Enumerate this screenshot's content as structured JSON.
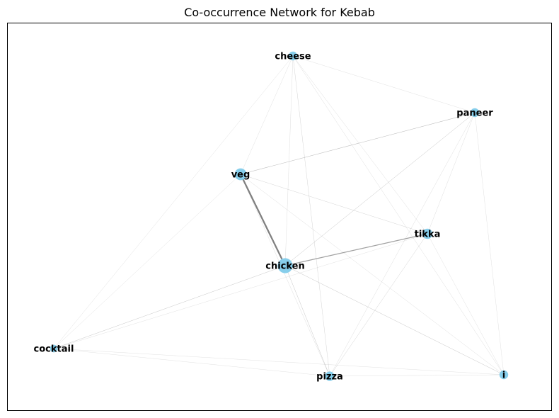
{
  "title": "Co-occurrence Network for Kebab",
  "colors": {
    "node": "#87ceeb",
    "edge": "#808080",
    "frame": "#000000",
    "text": "#000000"
  },
  "nodes": [
    {
      "id": "cheese",
      "label": "cheese",
      "weight": 1
    },
    {
      "id": "paneer",
      "label": "paneer",
      "weight": 1
    },
    {
      "id": "veg",
      "label": "veg",
      "weight": 2
    },
    {
      "id": "tikka",
      "label": "tikka",
      "weight": 1.5
    },
    {
      "id": "chicken",
      "label": "chicken",
      "weight": 3
    },
    {
      "id": "cocktail",
      "label": "cocktail",
      "weight": 0.6
    },
    {
      "id": "pizza",
      "label": "pizza",
      "weight": 1.2
    },
    {
      "id": "i",
      "label": "i",
      "weight": 1
    }
  ],
  "edges": [
    {
      "source": "veg",
      "target": "chicken",
      "weight": 2.5
    },
    {
      "source": "chicken",
      "target": "tikka",
      "weight": 1.3
    },
    {
      "source": "veg",
      "target": "paneer",
      "weight": 0.6
    },
    {
      "source": "veg",
      "target": "tikka",
      "weight": 0.4
    },
    {
      "source": "veg",
      "target": "pizza",
      "weight": 0.3
    },
    {
      "source": "veg",
      "target": "i",
      "weight": 0.3
    },
    {
      "source": "veg",
      "target": "cheese",
      "weight": 0.2
    },
    {
      "source": "veg",
      "target": "cocktail",
      "weight": 0.15
    },
    {
      "source": "chicken",
      "target": "paneer",
      "weight": 0.5
    },
    {
      "source": "chicken",
      "target": "cocktail",
      "weight": 0.5
    },
    {
      "source": "chicken",
      "target": "pizza",
      "weight": 0.5
    },
    {
      "source": "chicken",
      "target": "i",
      "weight": 0.5
    },
    {
      "source": "chicken",
      "target": "cheese",
      "weight": 0.3
    },
    {
      "source": "cheese",
      "target": "paneer",
      "weight": 0.2
    },
    {
      "source": "cheese",
      "target": "tikka",
      "weight": 0.3
    },
    {
      "source": "cheese",
      "target": "pizza",
      "weight": 0.4
    },
    {
      "source": "cheese",
      "target": "i",
      "weight": 0.3
    },
    {
      "source": "cheese",
      "target": "cocktail",
      "weight": 0.15
    },
    {
      "source": "paneer",
      "target": "tikka",
      "weight": 0.3
    },
    {
      "source": "paneer",
      "target": "pizza",
      "weight": 0.3
    },
    {
      "source": "paneer",
      "target": "i",
      "weight": 0.2
    },
    {
      "source": "tikka",
      "target": "pizza",
      "weight": 0.4
    },
    {
      "source": "tikka",
      "target": "i",
      "weight": 0.2
    },
    {
      "source": "tikka",
      "target": "cocktail",
      "weight": 0.15
    },
    {
      "source": "pizza",
      "target": "i",
      "weight": 0.2
    },
    {
      "source": "pizza",
      "target": "cocktail",
      "weight": 0.15
    },
    {
      "source": "cocktail",
      "target": "i",
      "weight": 0.15
    }
  ]
}
